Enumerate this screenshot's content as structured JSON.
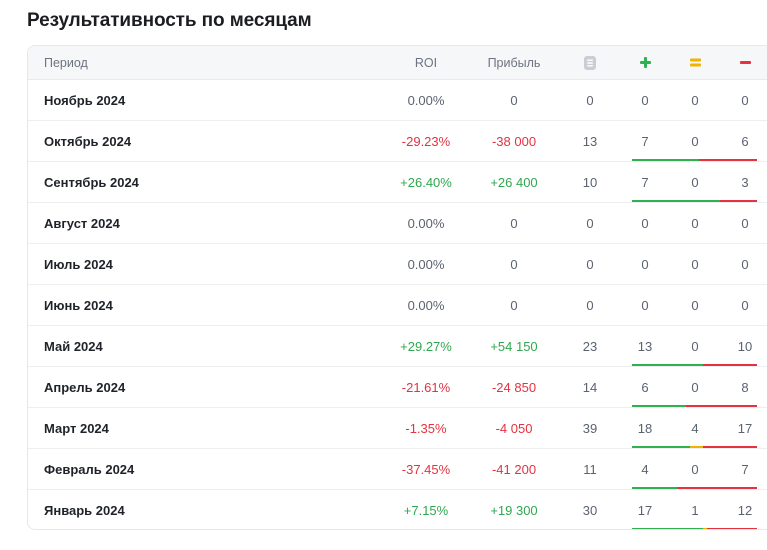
{
  "page": {
    "title": "Результативность по месяцам"
  },
  "table": {
    "headers": {
      "period": "Период",
      "roi": "ROI",
      "profit": "Прибыль",
      "total_icon": "list-icon",
      "win_icon": "plus-icon",
      "draw_icon": "equals-icon",
      "loss_icon": "minus-icon"
    },
    "colors": {
      "positive": "#2fa84f",
      "negative": "#e5323e",
      "draw": "#f0b400"
    },
    "rows": [
      {
        "period": "Ноябрь 2024",
        "roi": "0.00%",
        "profit": "0",
        "total": "0",
        "win": "0",
        "draw": "0",
        "loss": "0",
        "sign": "zero"
      },
      {
        "period": "Октябрь 2024",
        "roi": "-29.23%",
        "profit": "-38 000",
        "total": "13",
        "win": "7",
        "draw": "0",
        "loss": "6",
        "sign": "neg"
      },
      {
        "period": "Сентябрь 2024",
        "roi": "+26.40%",
        "profit": "+26 400",
        "total": "10",
        "win": "7",
        "draw": "0",
        "loss": "3",
        "sign": "pos"
      },
      {
        "period": "Август 2024",
        "roi": "0.00%",
        "profit": "0",
        "total": "0",
        "win": "0",
        "draw": "0",
        "loss": "0",
        "sign": "zero"
      },
      {
        "period": "Июль 2024",
        "roi": "0.00%",
        "profit": "0",
        "total": "0",
        "win": "0",
        "draw": "0",
        "loss": "0",
        "sign": "zero"
      },
      {
        "period": "Июнь 2024",
        "roi": "0.00%",
        "profit": "0",
        "total": "0",
        "win": "0",
        "draw": "0",
        "loss": "0",
        "sign": "zero"
      },
      {
        "period": "Май 2024",
        "roi": "+29.27%",
        "profit": "+54 150",
        "total": "23",
        "win": "13",
        "draw": "0",
        "loss": "10",
        "sign": "pos"
      },
      {
        "period": "Апрель 2024",
        "roi": "-21.61%",
        "profit": "-24 850",
        "total": "14",
        "win": "6",
        "draw": "0",
        "loss": "8",
        "sign": "neg"
      },
      {
        "period": "Март 2024",
        "roi": "-1.35%",
        "profit": "-4 050",
        "total": "39",
        "win": "18",
        "draw": "4",
        "loss": "17",
        "sign": "neg"
      },
      {
        "period": "Февраль 2024",
        "roi": "-37.45%",
        "profit": "-41 200",
        "total": "11",
        "win": "4",
        "draw": "0",
        "loss": "7",
        "sign": "neg"
      },
      {
        "period": "Январь 2024",
        "roi": "+7.15%",
        "profit": "+19 300",
        "total": "30",
        "win": "17",
        "draw": "1",
        "loss": "12",
        "sign": "pos"
      }
    ]
  }
}
